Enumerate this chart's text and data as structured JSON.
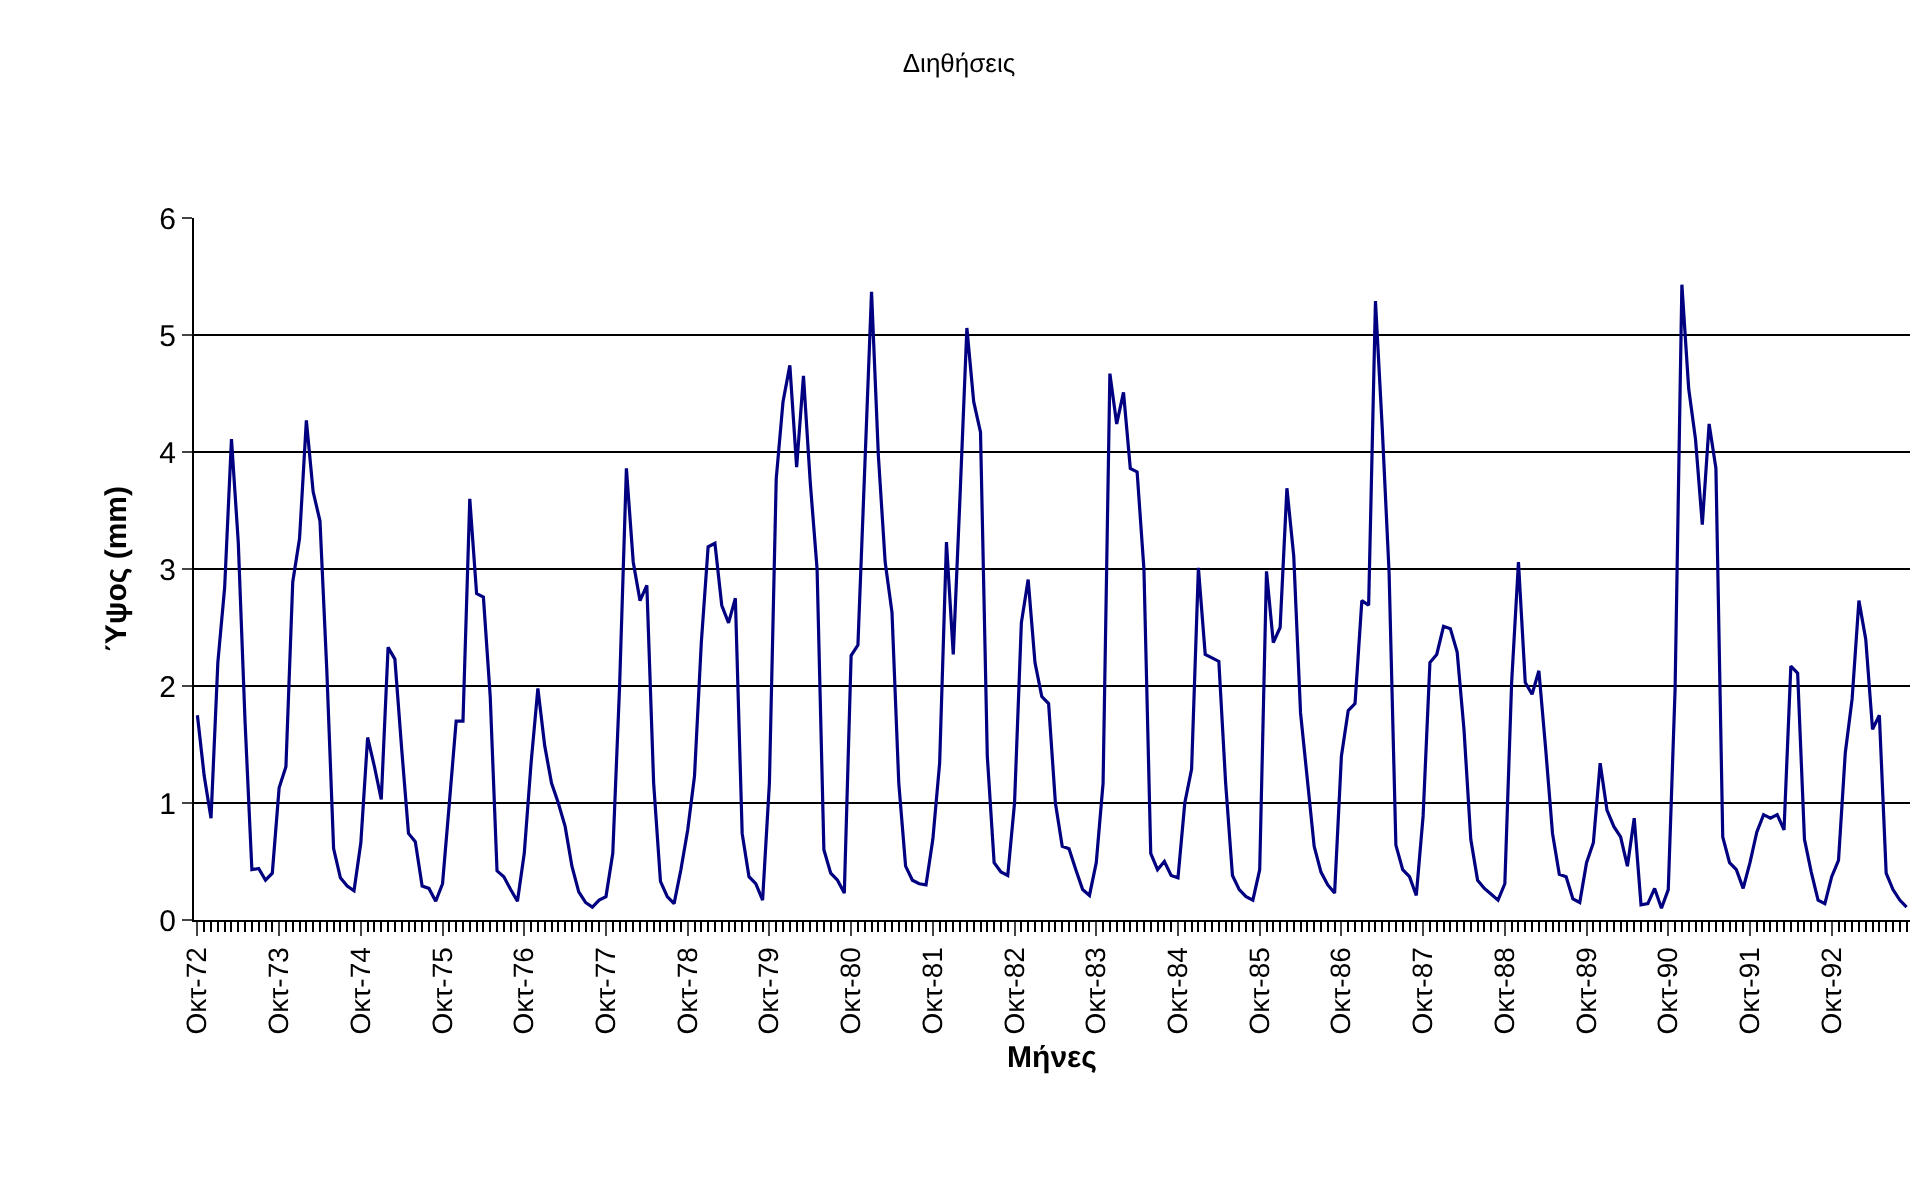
{
  "chart_data": {
    "type": "line",
    "title": "Διηθήσεις",
    "xlabel": "Μήνες",
    "ylabel": "Ύψος (mm)",
    "categories": [
      "Οκτ-72",
      null,
      null,
      null,
      null,
      null,
      null,
      null,
      null,
      null,
      null,
      null,
      "Οκτ-73",
      null,
      null,
      null,
      null,
      null,
      null,
      null,
      null,
      null,
      null,
      null,
      "Οκτ-74",
      null,
      null,
      null,
      null,
      null,
      null,
      null,
      null,
      null,
      null,
      null,
      "Οκτ-75",
      null,
      null,
      null,
      null,
      null,
      null,
      null,
      null,
      null,
      null,
      null,
      "Οκτ-76",
      null,
      null,
      null,
      null,
      null,
      null,
      null,
      null,
      null,
      null,
      null,
      "Οκτ-77",
      null,
      null,
      null,
      null,
      null,
      null,
      null,
      null,
      null,
      null,
      null,
      "Οκτ-78",
      null,
      null,
      null,
      null,
      null,
      null,
      null,
      null,
      null,
      null,
      null,
      "Οκτ-79",
      null,
      null,
      null,
      null,
      null,
      null,
      null,
      null,
      null,
      null,
      null,
      "Οκτ-80",
      null,
      null,
      null,
      null,
      null,
      null,
      null,
      null,
      null,
      null,
      null,
      "Οκτ-81",
      null,
      null,
      null,
      null,
      null,
      null,
      null,
      null,
      null,
      null,
      null,
      "Οκτ-82",
      null,
      null,
      null,
      null,
      null,
      null,
      null,
      null,
      null,
      null,
      null,
      "Οκτ-83",
      null,
      null,
      null,
      null,
      null,
      null,
      null,
      null,
      null,
      null,
      null,
      "Οκτ-84",
      null,
      null,
      null,
      null,
      null,
      null,
      null,
      null,
      null,
      null,
      null,
      "Οκτ-85",
      null,
      null,
      null,
      null,
      null,
      null,
      null,
      null,
      null,
      null,
      null,
      "Οκτ-86",
      null,
      null,
      null,
      null,
      null,
      null,
      null,
      null,
      null,
      null,
      null,
      "Οκτ-87",
      null,
      null,
      null,
      null,
      null,
      null,
      null,
      null,
      null,
      null,
      null,
      "Οκτ-88",
      null,
      null,
      null,
      null,
      null,
      null,
      null,
      null,
      null,
      null,
      null,
      "Οκτ-89",
      null,
      null,
      null,
      null,
      null,
      null,
      null,
      null,
      null,
      null,
      null,
      "Οκτ-90",
      null,
      null,
      null,
      null,
      null,
      null,
      null,
      null,
      null,
      null,
      null,
      "Οκτ-91",
      null,
      null,
      null,
      null,
      null,
      null,
      null,
      null,
      null,
      null,
      null,
      "Οκτ-92",
      null,
      null,
      null,
      null,
      null,
      null,
      null,
      null,
      null,
      null,
      null
    ],
    "series": [
      {
        "color": "#000080",
        "values": [
          1.75,
          1.23,
          0.87,
          2.2,
          2.84,
          4.11,
          3.23,
          1.69,
          0.43,
          0.44,
          0.34,
          0.4,
          1.13,
          1.31,
          2.89,
          3.26,
          4.27,
          3.66,
          3.41,
          2.14,
          0.61,
          0.36,
          0.29,
          0.25,
          0.66,
          1.56,
          1.31,
          1.03,
          2.33,
          2.23,
          1.46,
          0.74,
          0.67,
          0.29,
          0.27,
          0.16,
          0.31,
          1.0,
          1.7,
          1.7,
          3.6,
          2.79,
          2.76,
          1.91,
          0.42,
          0.37,
          0.26,
          0.16,
          0.57,
          1.34,
          1.98,
          1.49,
          1.17,
          1.0,
          0.8,
          0.46,
          0.24,
          0.15,
          0.11,
          0.17,
          0.2,
          0.57,
          2.0,
          3.86,
          3.06,
          2.73,
          2.86,
          1.17,
          0.33,
          0.2,
          0.14,
          0.43,
          0.77,
          1.23,
          2.37,
          3.19,
          3.22,
          2.69,
          2.54,
          2.75,
          0.74,
          0.37,
          0.31,
          0.17,
          1.17,
          3.77,
          4.43,
          4.74,
          3.87,
          4.65,
          3.74,
          3.0,
          0.6,
          0.4,
          0.34,
          0.23,
          2.26,
          2.35,
          3.86,
          5.37,
          3.97,
          3.06,
          2.63,
          1.17,
          0.46,
          0.34,
          0.31,
          0.3,
          0.69,
          1.34,
          3.23,
          2.27,
          3.63,
          5.06,
          4.43,
          4.17,
          1.4,
          0.49,
          0.41,
          0.38,
          1.0,
          2.54,
          2.91,
          2.2,
          1.91,
          1.85,
          1.0,
          0.63,
          0.61,
          0.43,
          0.26,
          0.21,
          0.49,
          1.17,
          4.67,
          4.24,
          4.51,
          3.86,
          3.83,
          3.0,
          0.57,
          0.43,
          0.5,
          0.38,
          0.36,
          1.0,
          1.29,
          3.01,
          2.27,
          2.24,
          2.21,
          1.17,
          0.38,
          0.26,
          0.2,
          0.17,
          0.43,
          2.98,
          2.37,
          2.5,
          3.69,
          3.11,
          1.77,
          1.2,
          0.63,
          0.41,
          0.3,
          0.23,
          1.4,
          1.79,
          1.85,
          2.73,
          2.69,
          5.29,
          4.2,
          2.97,
          0.64,
          0.43,
          0.37,
          0.21,
          0.89,
          2.2,
          2.27,
          2.51,
          2.49,
          2.29,
          1.63,
          0.69,
          0.34,
          0.27,
          0.22,
          0.17,
          0.31,
          2.03,
          3.06,
          2.03,
          1.93,
          2.13,
          1.46,
          0.74,
          0.39,
          0.37,
          0.18,
          0.15,
          0.49,
          0.66,
          1.34,
          0.94,
          0.8,
          0.71,
          0.46,
          0.87,
          0.13,
          0.14,
          0.27,
          0.1,
          0.26,
          1.97,
          5.43,
          4.54,
          4.11,
          3.38,
          4.24,
          3.86,
          0.71,
          0.49,
          0.43,
          0.27,
          0.49,
          0.75,
          0.9,
          0.87,
          0.9,
          0.77,
          2.17,
          2.11,
          0.69,
          0.41,
          0.17,
          0.14,
          0.37,
          0.51,
          1.43,
          1.89,
          2.73,
          2.4,
          1.63,
          1.75,
          0.4,
          0.26,
          0.17,
          0.11
        ]
      }
    ],
    "ylim": [
      0,
      6
    ],
    "yticks": [
      0,
      1,
      2,
      3,
      4,
      5,
      6
    ],
    "grid": "y",
    "marker": "none",
    "line_style": "solid"
  }
}
